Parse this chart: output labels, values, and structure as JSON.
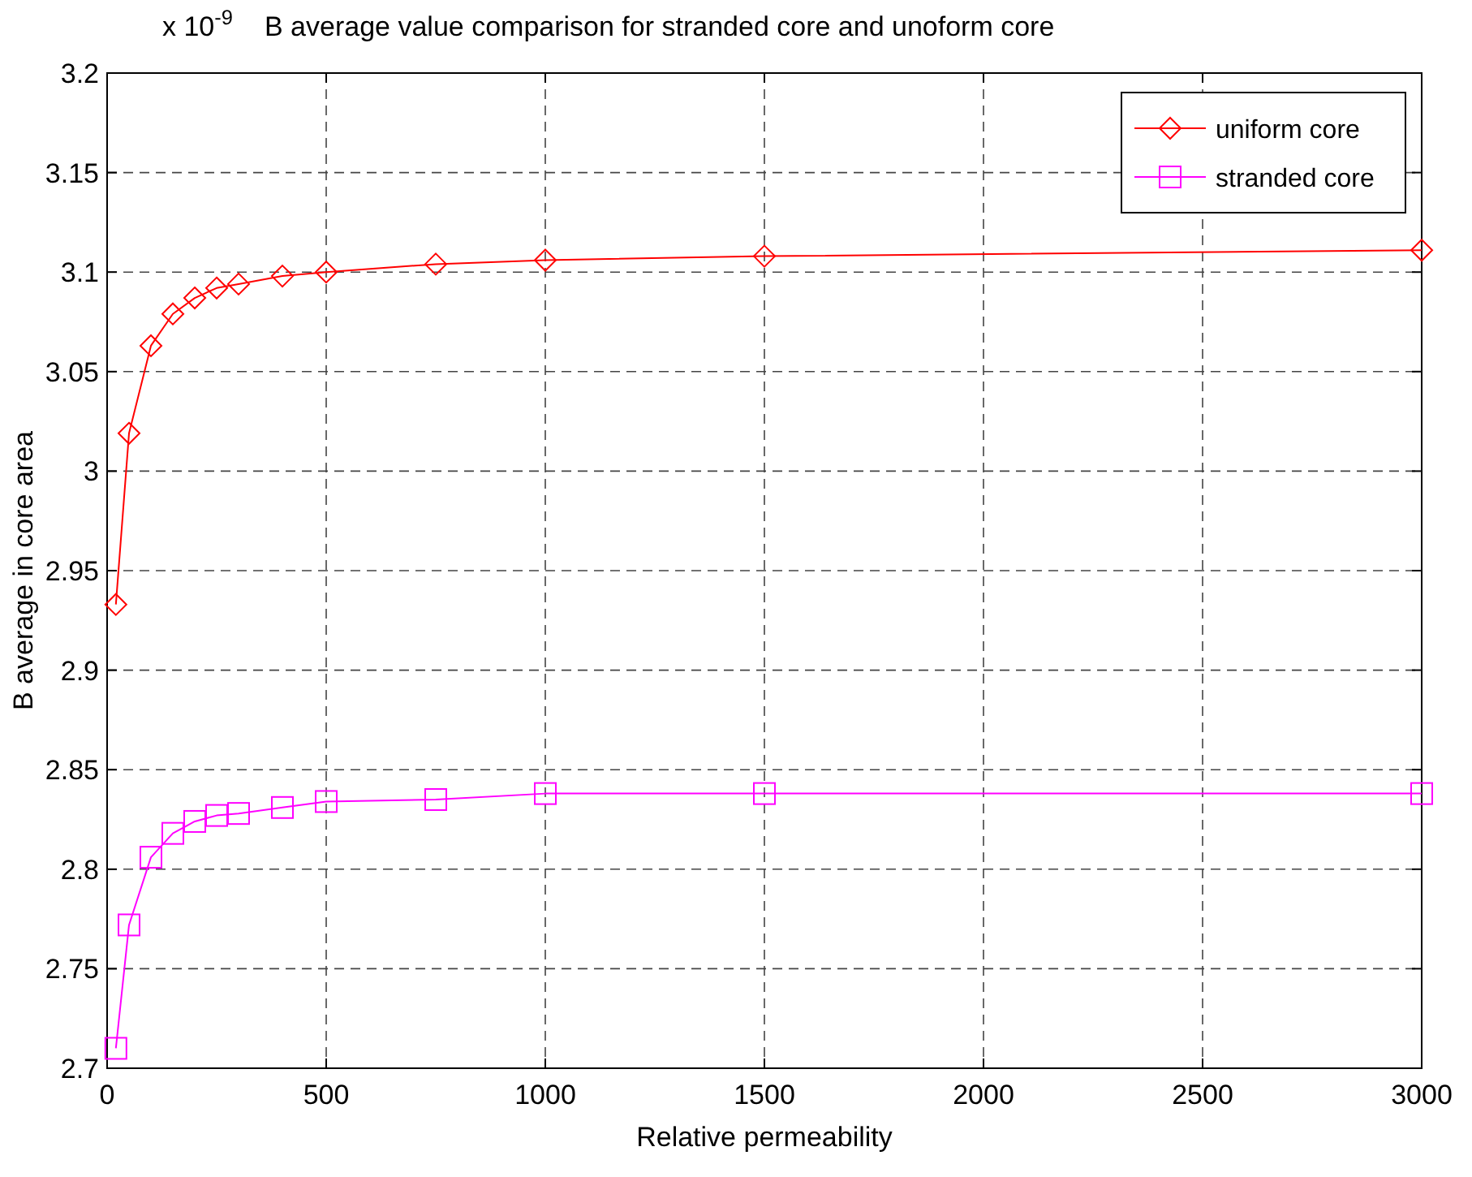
{
  "chart_data": {
    "type": "line",
    "title": "B average value comparison for stranded core and unoform core",
    "annotations": [
      "x 10$^{-9}$"
    ],
    "xlabel": "Relative permeability",
    "ylabel": "B average in core area",
    "x": [
      20,
      50,
      100,
      150,
      200,
      250,
      300,
      400,
      500,
      750,
      1000,
      1500,
      3000
    ],
    "series": [
      {
        "name": "uniform core",
        "color": "#ff0000",
        "marker": "diamond",
        "values": [
          2.933,
          3.019,
          3.063,
          3.079,
          3.087,
          3.092,
          3.094,
          3.098,
          3.1,
          3.104,
          3.106,
          3.108,
          3.111
        ]
      },
      {
        "name": "stranded core",
        "color": "#ff00ff",
        "marker": "square",
        "values": [
          2.71,
          2.772,
          2.806,
          2.818,
          2.824,
          2.827,
          2.828,
          2.831,
          2.834,
          2.835,
          2.838,
          2.838,
          2.838
        ]
      }
    ],
    "xlim": [
      0,
      3000
    ],
    "xticks": [
      0,
      500,
      1000,
      1500,
      2000,
      2500,
      3000
    ],
    "ylim": [
      2.7,
      3.2
    ],
    "yticks": [
      2.7,
      2.75,
      2.8,
      2.85,
      2.9,
      2.95,
      3,
      3.05,
      3.1,
      3.15,
      3.2
    ],
    "grid": true,
    "legend": "top right",
    "line_style": "solid"
  }
}
